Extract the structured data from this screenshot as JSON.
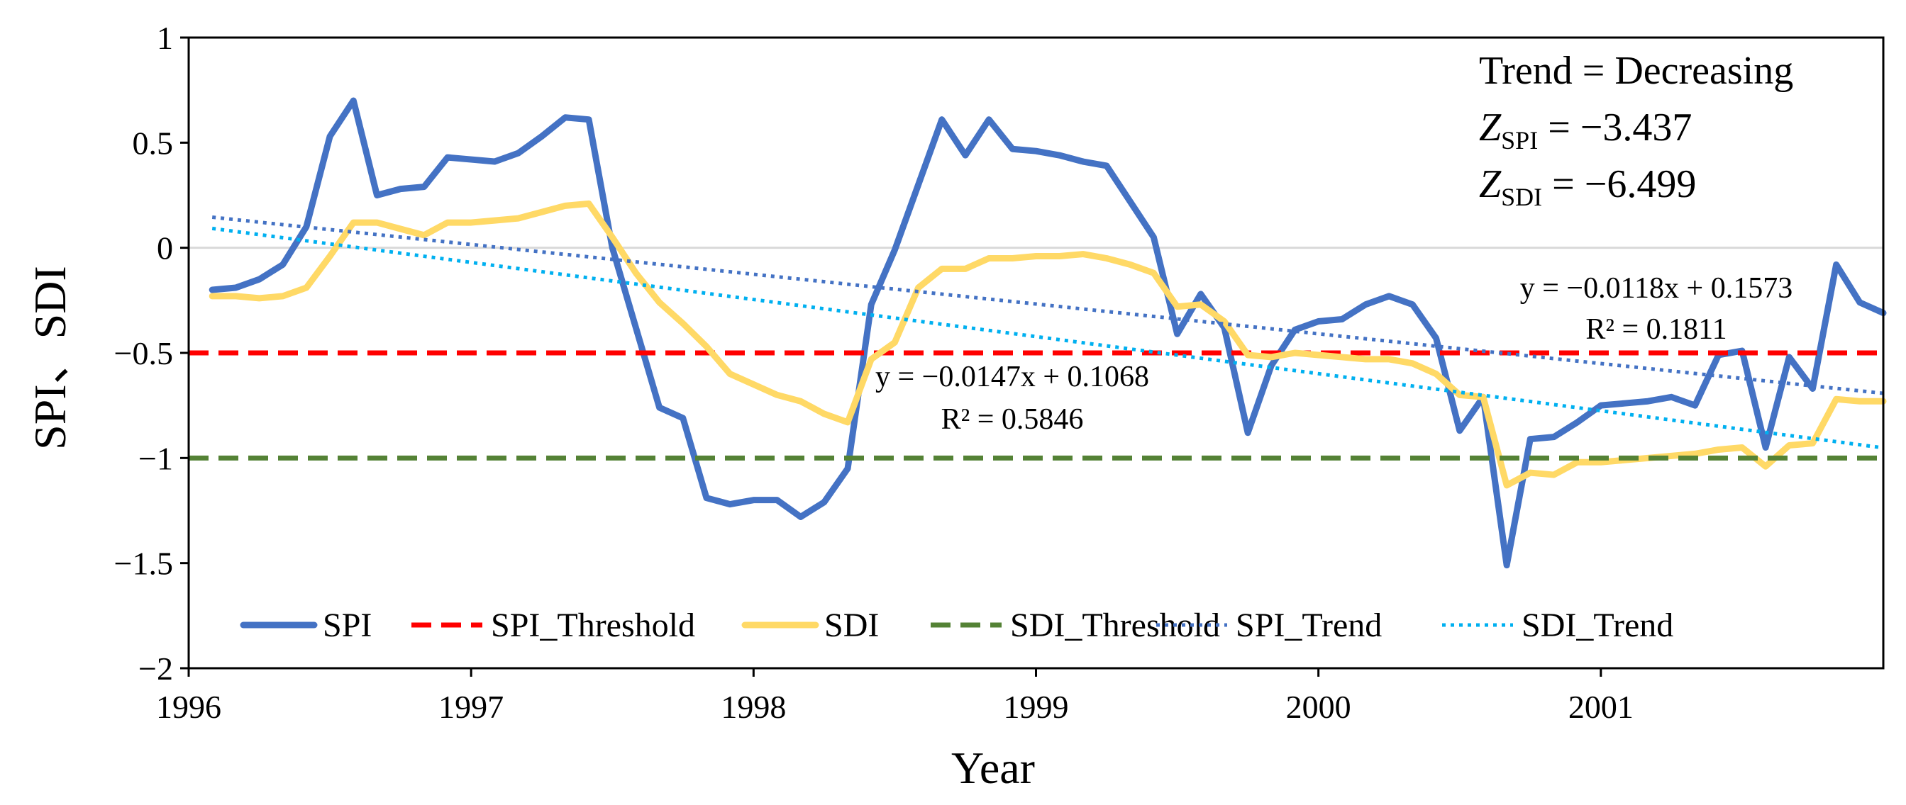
{
  "chart_data": {
    "type": "line",
    "xlabel": "Year",
    "ylabel": "SPI、SDI",
    "ylim": [
      -2,
      1
    ],
    "yticks": [
      1,
      0.5,
      0,
      -0.5,
      -1,
      -1.5,
      -2
    ],
    "ytick_labels": [
      "1",
      "0.5",
      "0",
      "−0.5",
      "−1",
      "−1.5",
      "−2"
    ],
    "x_range": [
      0,
      72
    ],
    "xticks": [
      0,
      12,
      24,
      36,
      48,
      60
    ],
    "xtick_labels": [
      "1996",
      "1997",
      "1998",
      "1999",
      "2000",
      "2001"
    ],
    "x": [
      1,
      2,
      3,
      4,
      5,
      6,
      7,
      8,
      9,
      10,
      11,
      12,
      13,
      14,
      15,
      16,
      17,
      18,
      19,
      20,
      21,
      22,
      23,
      24,
      25,
      26,
      27,
      28,
      29,
      30,
      31,
      32,
      33,
      34,
      35,
      36,
      37,
      38,
      39,
      40,
      41,
      42,
      43,
      44,
      45,
      46,
      47,
      48,
      49,
      50,
      51,
      52,
      53,
      54,
      55,
      56,
      57,
      58,
      59,
      60,
      61,
      62,
      63,
      64,
      65,
      66,
      67,
      68,
      69,
      70,
      71,
      72
    ],
    "series": [
      {
        "name": "SPI",
        "color": "#4472C4",
        "style": "solid",
        "values": [
          -0.2,
          -0.19,
          -0.15,
          -0.08,
          0.1,
          0.53,
          0.7,
          0.25,
          0.28,
          0.29,
          0.43,
          0.42,
          0.41,
          0.45,
          0.53,
          0.62,
          0.61,
          0.0,
          -0.38,
          -0.76,
          -0.81,
          -1.19,
          -1.22,
          -1.2,
          -1.2,
          -1.28,
          -1.21,
          -1.05,
          -0.27,
          -0.01,
          0.3,
          0.61,
          0.44,
          0.61,
          0.47,
          0.46,
          0.44,
          0.41,
          0.39,
          0.22,
          0.05,
          -0.41,
          -0.22,
          -0.38,
          -0.88,
          -0.56,
          -0.39,
          -0.35,
          -0.34,
          -0.27,
          -0.23,
          -0.27,
          -0.43,
          -0.87,
          -0.71,
          -1.51,
          -0.91,
          -0.9,
          -0.83,
          -0.75,
          -0.74,
          -0.73,
          -0.71,
          -0.75,
          -0.51,
          -0.49,
          -0.95,
          -0.52,
          -0.67,
          -0.08,
          -0.26,
          -0.31
        ]
      },
      {
        "name": "SPI_Threshold",
        "color": "#FF0000",
        "style": "dashed",
        "constant": -0.5
      },
      {
        "name": "SDI",
        "color": "#FFD966",
        "style": "solid",
        "values": [
          -0.23,
          -0.23,
          -0.24,
          -0.23,
          -0.19,
          -0.04,
          0.12,
          0.12,
          0.09,
          0.06,
          0.12,
          0.12,
          0.13,
          0.14,
          0.17,
          0.2,
          0.21,
          0.05,
          -0.12,
          -0.26,
          -0.36,
          -0.47,
          -0.6,
          -0.65,
          -0.7,
          -0.73,
          -0.79,
          -0.83,
          -0.53,
          -0.45,
          -0.19,
          -0.1,
          -0.1,
          -0.05,
          -0.05,
          -0.04,
          -0.04,
          -0.03,
          -0.05,
          -0.08,
          -0.12,
          -0.28,
          -0.27,
          -0.35,
          -0.51,
          -0.52,
          -0.5,
          -0.51,
          -0.52,
          -0.53,
          -0.53,
          -0.55,
          -0.6,
          -0.7,
          -0.71,
          -1.13,
          -1.07,
          -1.08,
          -1.02,
          -1.02,
          -1.01,
          -1.0,
          -0.99,
          -0.98,
          -0.96,
          -0.95,
          -1.04,
          -0.94,
          -0.93,
          -0.72,
          -0.73,
          -0.73
        ]
      },
      {
        "name": "SDI_Threshold",
        "color": "#548235",
        "style": "dashed",
        "constant": -1.0
      },
      {
        "name": "SPI_Trend",
        "color": "#4472C4",
        "style": "dotted",
        "slope": -0.0118,
        "intercept": 0.1573
      },
      {
        "name": "SDI_Trend",
        "color": "#00B0F0",
        "style": "dotted",
        "slope": -0.0147,
        "intercept": 0.1068
      }
    ],
    "annotations": {
      "spi_equation": "y = −0.0118x + 0.1573",
      "spi_r2": "R² = 0.1811",
      "sdi_equation": "y = −0.0147x + 0.1068",
      "sdi_r2": "R² = 0.5846",
      "trend_label": "Trend = Decreasing",
      "z_spi_base": "Z",
      "z_spi_sub": "SPI",
      "z_spi_value": " = −3.437",
      "z_sdi_base": "Z",
      "z_sdi_sub": "SDI",
      "z_sdi_value": " = −6.499"
    },
    "legend_position": "bottom-inside",
    "grid": false,
    "zero_line": true
  }
}
